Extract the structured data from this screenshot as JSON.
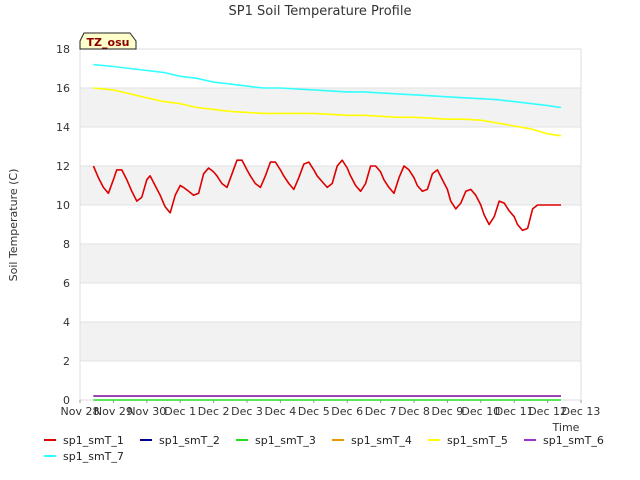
{
  "chart_data": {
    "type": "line",
    "title": "SP1 Soil Temperature Profile",
    "xlabel": "Time",
    "ylabel": "Soil Temperature (C)",
    "site_badge": "TZ_osu",
    "ylim": [
      0,
      18
    ],
    "xlim": [
      0,
      15
    ],
    "y_ticks": [
      0,
      2,
      4,
      6,
      8,
      10,
      12,
      14,
      16,
      18
    ],
    "x_tick_labels": [
      "Nov 28",
      "Nov 29",
      "Nov 30",
      "Dec 1",
      "Dec 2",
      "Dec 3",
      "Dec 4",
      "Dec 5",
      "Dec 6",
      "Dec 7",
      "Dec 8",
      "Dec 9",
      "Dec 10",
      "Dec 11",
      "Dec 12",
      "Dec 13"
    ],
    "grid": true,
    "background_bands": true,
    "legend_position": "bottom",
    "series": [
      {
        "name": "sp1_smT_1",
        "color": "#dd0000",
        "x": [
          0.4,
          0.55,
          0.7,
          0.85,
          1.0,
          1.1,
          1.25,
          1.4,
          1.55,
          1.7,
          1.85,
          2.0,
          2.1,
          2.25,
          2.4,
          2.55,
          2.7,
          2.85,
          3.0,
          3.1,
          3.25,
          3.4,
          3.55,
          3.7,
          3.85,
          4.0,
          4.1,
          4.25,
          4.4,
          4.55,
          4.7,
          4.85,
          5.0,
          5.1,
          5.25,
          5.4,
          5.55,
          5.7,
          5.85,
          6.0,
          6.1,
          6.25,
          6.4,
          6.55,
          6.7,
          6.85,
          7.0,
          7.1,
          7.25,
          7.4,
          7.55,
          7.7,
          7.85,
          8.0,
          8.1,
          8.25,
          8.4,
          8.55,
          8.7,
          8.85,
          9.0,
          9.1,
          9.25,
          9.4,
          9.55,
          9.7,
          9.85,
          10.0,
          10.1,
          10.25,
          10.4,
          10.55,
          10.7,
          10.85,
          11.0,
          11.1,
          11.25,
          11.4,
          11.55,
          11.7,
          11.85,
          12.0,
          12.1,
          12.25,
          12.4,
          12.55,
          12.7,
          12.85,
          13.0,
          13.1,
          13.25,
          13.4,
          13.55,
          13.7,
          13.85,
          14.0,
          14.1,
          14.25,
          14.4
        ],
        "y": [
          12.0,
          11.4,
          10.9,
          10.6,
          11.3,
          11.8,
          11.8,
          11.3,
          10.7,
          10.2,
          10.4,
          11.3,
          11.5,
          11.0,
          10.5,
          9.9,
          9.6,
          10.5,
          11.0,
          10.9,
          10.7,
          10.5,
          10.6,
          11.6,
          11.9,
          11.7,
          11.5,
          11.1,
          10.9,
          11.6,
          12.3,
          12.3,
          11.8,
          11.5,
          11.1,
          10.9,
          11.5,
          12.2,
          12.2,
          11.8,
          11.5,
          11.1,
          10.8,
          11.4,
          12.1,
          12.2,
          11.8,
          11.5,
          11.2,
          10.9,
          11.1,
          12.0,
          12.3,
          11.9,
          11.5,
          11.0,
          10.7,
          11.1,
          12.0,
          12.0,
          11.7,
          11.3,
          10.9,
          10.6,
          11.4,
          12.0,
          11.8,
          11.4,
          11.0,
          10.7,
          10.8,
          11.6,
          11.8,
          11.3,
          10.8,
          10.2,
          9.8,
          10.1,
          10.7,
          10.8,
          10.5,
          10.0,
          9.5,
          9.0,
          9.4,
          10.2,
          10.1,
          9.7,
          9.4,
          9.0,
          8.7,
          8.8,
          9.8,
          10.0,
          10.0,
          10.0,
          10.0,
          10.0,
          10.0
        ]
      },
      {
        "name": "sp1_smT_2",
        "color": "#000099",
        "x": [
          0.4,
          14.4
        ],
        "y": [
          0.2,
          0.2
        ]
      },
      {
        "name": "sp1_smT_3",
        "color": "#22dd22",
        "x": [
          0.4,
          14.4
        ],
        "y": [
          0.0,
          0.0
        ]
      },
      {
        "name": "sp1_smT_4",
        "color": "#ee9900",
        "x": [
          0.4,
          14.4
        ],
        "y": [
          0.2,
          0.2
        ]
      },
      {
        "name": "sp1_smT_5",
        "color": "#ffff00",
        "x": [
          0.4,
          1.0,
          1.5,
          2.0,
          2.5,
          3.0,
          3.5,
          4.0,
          4.5,
          5.0,
          5.5,
          6.0,
          6.5,
          7.0,
          7.5,
          8.0,
          8.5,
          9.0,
          9.5,
          10.0,
          10.5,
          11.0,
          11.5,
          12.0,
          12.5,
          13.0,
          13.5,
          14.0,
          14.4
        ],
        "y": [
          16.0,
          15.9,
          15.7,
          15.5,
          15.3,
          15.2,
          15.0,
          14.9,
          14.8,
          14.75,
          14.7,
          14.7,
          14.7,
          14.7,
          14.65,
          14.6,
          14.6,
          14.55,
          14.5,
          14.5,
          14.45,
          14.4,
          14.4,
          14.35,
          14.2,
          14.05,
          13.9,
          13.65,
          13.55
        ]
      },
      {
        "name": "sp1_smT_6",
        "color": "#9933cc",
        "x": [
          0.4,
          14.4
        ],
        "y": [
          0.2,
          0.2
        ]
      },
      {
        "name": "sp1_smT_7",
        "color": "#33ffff",
        "x": [
          0.4,
          1.0,
          1.5,
          2.0,
          2.5,
          3.0,
          3.5,
          4.0,
          4.5,
          5.0,
          5.5,
          6.0,
          6.5,
          7.0,
          7.5,
          8.0,
          8.5,
          9.0,
          9.5,
          10.0,
          10.5,
          11.0,
          11.5,
          12.0,
          12.5,
          13.0,
          13.5,
          14.0,
          14.4
        ],
        "y": [
          17.2,
          17.1,
          17.0,
          16.9,
          16.8,
          16.6,
          16.5,
          16.3,
          16.2,
          16.1,
          16.0,
          16.0,
          15.95,
          15.9,
          15.85,
          15.8,
          15.8,
          15.75,
          15.7,
          15.65,
          15.6,
          15.55,
          15.5,
          15.45,
          15.4,
          15.3,
          15.2,
          15.1,
          15.0
        ]
      }
    ]
  }
}
